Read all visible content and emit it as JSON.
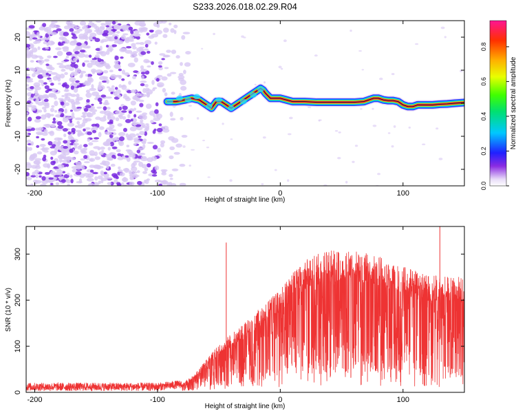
{
  "colors": {
    "line": "#ee3333",
    "trace_red": "#e0243c",
    "trace_dark": "#222222",
    "noise_purple": "#7a2be0",
    "noise_light": "#d8c8f4",
    "axis": "#000000"
  },
  "chart_data": [
    {
      "type": "heatmap",
      "title": "S233.2026.018.02.29.R04",
      "xlabel": "Height of straight line (km)",
      "ylabel": "Frequency (Hz)",
      "xlim": [
        -207,
        150
      ],
      "ylim": [
        -25,
        25
      ],
      "x_ticks": [
        -200,
        -100,
        0,
        100
      ],
      "x_tick_labels": [
        "-200",
        "-100",
        "0",
        "100"
      ],
      "y_ticks": [
        -20,
        -10,
        0,
        10,
        20
      ],
      "y_tick_labels": [
        "-20",
        "-10",
        "0",
        "10",
        "20"
      ],
      "colorbar": {
        "label": "Normalized spectral amplitude",
        "range": [
          0,
          0.95
        ],
        "ticks": [
          0,
          0.2,
          0.4,
          0.6,
          0.8
        ],
        "tick_labels": [
          "0.0",
          "0.2",
          "0.4",
          "0.6",
          "0.8"
        ]
      },
      "ridge": {
        "x": [
          -92,
          -85,
          -78,
          -72,
          -66,
          -60,
          -56,
          -52,
          -48,
          -44,
          -40,
          -36,
          -32,
          -28,
          -24,
          -20,
          -16,
          -14,
          -12,
          -8,
          -4,
          0,
          10,
          20,
          30,
          40,
          50,
          60,
          68,
          72,
          76,
          80,
          84,
          88,
          92,
          96,
          100,
          104,
          108,
          112,
          118,
          124,
          130,
          136,
          142,
          150
        ],
        "y": [
          0.5,
          0.5,
          1,
          1.5,
          1,
          -0.5,
          -1.5,
          0.5,
          0.5,
          -0.5,
          -1.5,
          -0.5,
          0.5,
          1.5,
          2.5,
          3.5,
          4.5,
          4,
          3,
          1.5,
          1.5,
          1.5,
          0.5,
          0.5,
          0.3,
          0.3,
          0.3,
          0.3,
          0.5,
          1,
          1.5,
          1.5,
          1,
          0.8,
          0.8,
          0.5,
          -0.5,
          -1,
          -1,
          -0.5,
          -0.5,
          -0.5,
          -0.3,
          -0.2,
          0,
          0.2
        ]
      },
      "noise_x_range": [
        -207,
        -75
      ]
    },
    {
      "type": "line",
      "xlabel": "Height of straight line (km)",
      "ylabel": "SNR (10 * v/v)",
      "xlim": [
        -207,
        150
      ],
      "ylim": [
        0,
        360
      ],
      "x_ticks": [
        -200,
        -100,
        0,
        100
      ],
      "x_tick_labels": [
        "-200",
        "-100",
        "0",
        "100"
      ],
      "y_ticks": [
        0,
        100,
        200,
        300
      ],
      "y_tick_labels": [
        "0",
        "100",
        "200",
        "300"
      ],
      "series": [
        {
          "name": "SNR",
          "envelope_x": [
            -207,
            -100,
            -80,
            -70,
            -60,
            -50,
            -40,
            -30,
            -20,
            -10,
            0,
            10,
            20,
            30,
            40,
            60,
            80,
            100,
            120,
            150
          ],
          "envelope_y": [
            12,
            12,
            18,
            35,
            65,
            95,
            115,
            135,
            160,
            185,
            205,
            235,
            260,
            275,
            280,
            280,
            270,
            250,
            230,
            230
          ],
          "spikes": [
            {
              "x": -44,
              "y": 325
            },
            {
              "x": 130,
              "y": 360
            }
          ]
        }
      ]
    }
  ]
}
